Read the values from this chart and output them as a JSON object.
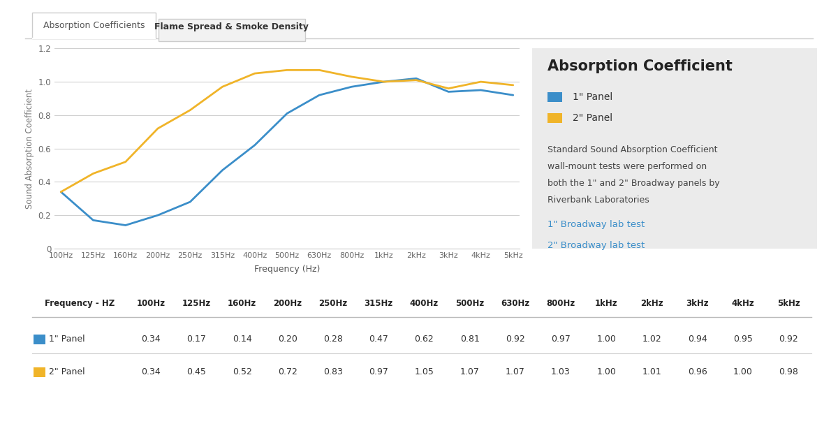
{
  "frequencies": [
    "100Hz",
    "125Hz",
    "160Hz",
    "200Hz",
    "250Hz",
    "315Hz",
    "400Hz",
    "500Hz",
    "630Hz",
    "800Hz",
    "1kHz",
    "2kHz",
    "3kHz",
    "4kHz",
    "5kHz"
  ],
  "panel1_values": [
    0.34,
    0.17,
    0.14,
    0.2,
    0.28,
    0.47,
    0.62,
    0.81,
    0.92,
    0.97,
    1.0,
    1.02,
    0.94,
    0.95,
    0.92
  ],
  "panel2_values": [
    0.34,
    0.45,
    0.52,
    0.72,
    0.83,
    0.97,
    1.05,
    1.07,
    1.07,
    1.03,
    1.0,
    1.01,
    0.96,
    1.0,
    0.98
  ],
  "panel1_color": "#3b8ec9",
  "panel2_color": "#f0b429",
  "ylabel": "Sound Absorption Coefficient",
  "xlabel": "Frequency (Hz)",
  "ylim": [
    0,
    1.2
  ],
  "yticks": [
    0,
    0.2,
    0.4,
    0.6,
    0.8,
    1.0,
    1.2
  ],
  "title_tab1": "Absorption Coefficients",
  "title_tab2": "Flame Spread & Smoke Density",
  "legend_title": "Absorption Coefficient",
  "legend_label1": "1\" Panel",
  "legend_label2": "2\" Panel",
  "desc_lines": [
    "Standard Sound Absorption Coefficient",
    "wall-mount tests were performed on",
    "both the 1\" and 2\" Broadway panels by",
    "Riverbank Laboratories"
  ],
  "link1": "1\" Broadway lab test",
  "link2": "2\" Broadway lab test",
  "link_color": "#3b8ec9",
  "table_header": [
    "Frequency - HZ",
    "100Hz",
    "125Hz",
    "160Hz",
    "200Hz",
    "250Hz",
    "315Hz",
    "400Hz",
    "500Hz",
    "630Hz",
    "800Hz",
    "1kHz",
    "2kHz",
    "3kHz",
    "4kHz",
    "5kHz"
  ],
  "background_color": "#ffffff",
  "panel_bg": "#ebebeb",
  "grid_color": "#d0d0d0",
  "tab_border_color": "#cccccc"
}
